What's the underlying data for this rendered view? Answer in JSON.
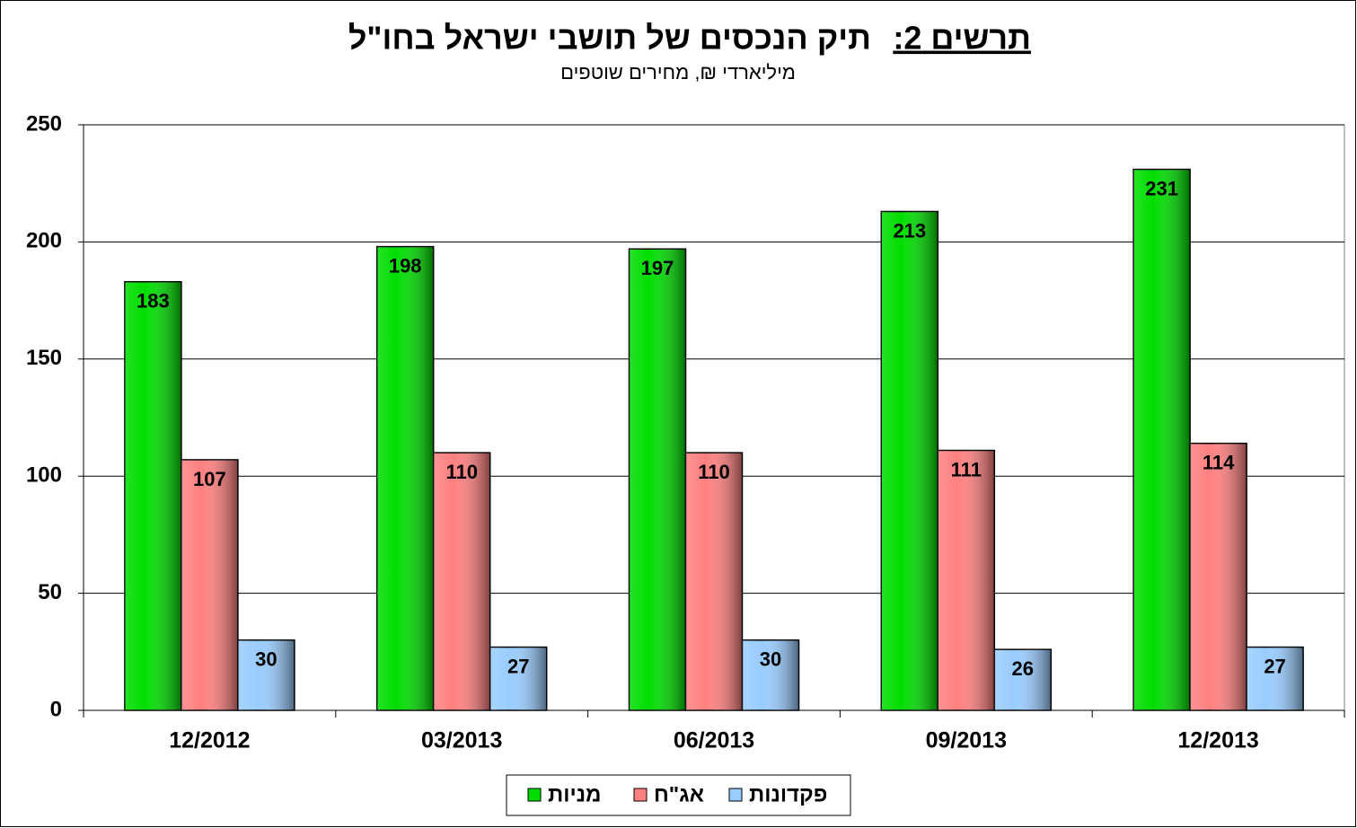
{
  "chart_data": {
    "type": "bar",
    "title_number": "תרשים 2:",
    "title": "תיק הנכסים של תושבי ישראל בחו\"ל",
    "subtitle": "מיליארדי ₪, מחירים שוטפים",
    "categories": [
      "12/2012",
      "03/2013",
      "06/2013",
      "09/2013",
      "12/2013"
    ],
    "series": [
      {
        "name": "מניות",
        "color": "#00dd00",
        "values": [
          183,
          198,
          197,
          213,
          231
        ]
      },
      {
        "name": "אג\"ח",
        "color": "#ff8080",
        "values": [
          107,
          110,
          110,
          111,
          114
        ]
      },
      {
        "name": "פקדונות",
        "color": "#99ccff",
        "values": [
          30,
          27,
          30,
          26,
          27
        ]
      }
    ],
    "ylim": [
      0,
      250
    ],
    "yticks": [
      0,
      50,
      100,
      150,
      200,
      250
    ],
    "grid": true,
    "legend": "bottom"
  }
}
